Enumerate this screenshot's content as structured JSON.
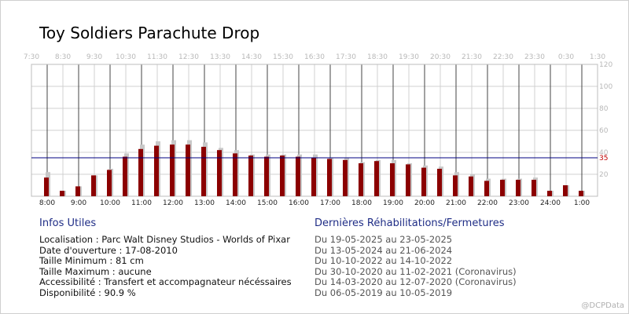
{
  "chart_data": {
    "type": "bar",
    "title": "Toy Soldiers Parachute Drop",
    "bottom_ticks": [
      "8:00",
      "9:00",
      "10:00",
      "11:00",
      "12:00",
      "13:00",
      "14:00",
      "15:00",
      "16:00",
      "17:00",
      "18:00",
      "19:00",
      "20:00",
      "21:00",
      "22:00",
      "23:00",
      "24:00",
      "1:00"
    ],
    "top_ticks": [
      "7:30",
      "8:30",
      "9:30",
      "10:30",
      "11:30",
      "12:30",
      "13:30",
      "14:30",
      "15:30",
      "16:30",
      "17:30",
      "18:30",
      "19:30",
      "20:30",
      "21:30",
      "22:30",
      "23:30",
      "0:30",
      "1:30"
    ],
    "y_ticks": [
      20,
      40,
      60,
      80,
      100,
      120
    ],
    "ylim": [
      0,
      120
    ],
    "reference_line": {
      "value": 35,
      "label": "35",
      "color": "#000080"
    },
    "series": [
      {
        "color": "#8b0000",
        "values": [
          17,
          5,
          9,
          19,
          24,
          36,
          43,
          46,
          47,
          47,
          45,
          42,
          39,
          37,
          36,
          37,
          36,
          35,
          34,
          33,
          30,
          32,
          30,
          29,
          26,
          25,
          19,
          18,
          14,
          15,
          15,
          15,
          5,
          10,
          5
        ]
      },
      {
        "color": "#c8c8c8",
        "values": [
          22,
          5,
          9,
          19,
          25,
          39,
          47,
          50,
          51,
          51,
          49,
          44,
          42,
          38,
          38,
          38,
          38,
          38,
          35,
          35,
          31,
          33,
          33,
          30,
          28,
          27,
          22,
          20,
          16,
          16,
          16,
          17,
          5,
          10,
          5
        ]
      }
    ]
  },
  "infos": {
    "title": "Infos Utiles",
    "lines": [
      "Localisation : Parc Walt Disney Studios - Worlds of Pixar",
      "Date d'ouverture : 17-08-2010",
      "Taille Minimum : 81 cm",
      "Taille Maximum : aucune",
      "Accessibilité : Transfert et accompagnateur nécéssaires",
      "Disponibilité : 90.9 %"
    ]
  },
  "rehab": {
    "title": "Dernières Réhabilitations/Fermetures",
    "lines": [
      "Du 19-05-2025 au 23-05-2025",
      "Du 13-05-2024 au 21-06-2024",
      "Du 10-10-2022 au 14-10-2022",
      "Du 30-10-2020 au 11-02-2021 (Coronavirus)",
      "Du 14-03-2020 au 12-07-2020 (Coronavirus)",
      "Du 06-05-2019 au 10-05-2019"
    ]
  },
  "watermark": "@DCPData"
}
